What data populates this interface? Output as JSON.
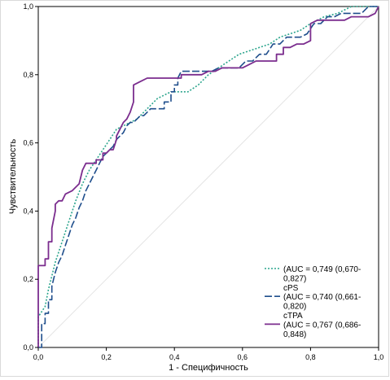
{
  "chart_data": {
    "type": "line",
    "xlabel": "1 - Специфичность",
    "ylabel": "Чувствительность",
    "xlim": [
      0,
      1
    ],
    "ylim": [
      0,
      1
    ],
    "x_ticks": [
      "0,0",
      "0,2",
      "0,4",
      "0,6",
      "0,8",
      "1,0"
    ],
    "y_ticks": [
      "0,0",
      "0,2",
      "0,4",
      "0,6",
      "0,8",
      "1,0"
    ],
    "grid": false,
    "legend_position": "bottom-right",
    "legend_lines": [
      "(AUC = 0,749 (0,670-",
      "0,827)",
      "cPS",
      "(AUC = 0,740 (0,661-",
      "0,820)",
      "cTPA",
      "(AUC = 0,767 (0,686-",
      "0,848)"
    ],
    "series": [
      {
        "color": "#2ca58d",
        "style": "dotted",
        "x": [
          0.0,
          0.0,
          0.02,
          0.03,
          0.05,
          0.07,
          0.09,
          0.11,
          0.13,
          0.15,
          0.17,
          0.19,
          0.21,
          0.23,
          0.25,
          0.27,
          0.29,
          0.31,
          0.33,
          0.35,
          0.37,
          0.39,
          0.41,
          0.44,
          0.47,
          0.5,
          0.53,
          0.56,
          0.59,
          0.62,
          0.65,
          0.68,
          0.71,
          0.74,
          0.77,
          0.8,
          0.84,
          0.88,
          0.92,
          0.96,
          1.0
        ],
        "y": [
          0.0,
          0.09,
          0.12,
          0.17,
          0.25,
          0.31,
          0.37,
          0.43,
          0.48,
          0.52,
          0.55,
          0.58,
          0.61,
          0.64,
          0.65,
          0.66,
          0.67,
          0.69,
          0.71,
          0.73,
          0.74,
          0.75,
          0.75,
          0.75,
          0.77,
          0.8,
          0.82,
          0.84,
          0.86,
          0.87,
          0.88,
          0.89,
          0.91,
          0.92,
          0.93,
          0.95,
          0.97,
          0.98,
          1.0,
          1.0,
          1.0
        ]
      },
      {
        "color": "#1f4e8c",
        "style": "dashed",
        "x": [
          0.0,
          0.01,
          0.01,
          0.02,
          0.02,
          0.03,
          0.03,
          0.04,
          0.04,
          0.05,
          0.06,
          0.07,
          0.08,
          0.09,
          0.1,
          0.11,
          0.12,
          0.13,
          0.14,
          0.15,
          0.16,
          0.17,
          0.18,
          0.19,
          0.2,
          0.21,
          0.22,
          0.23,
          0.24,
          0.25,
          0.26,
          0.27,
          0.28,
          0.29,
          0.3,
          0.31,
          0.32,
          0.33,
          0.35,
          0.36,
          0.37,
          0.37,
          0.39,
          0.39,
          0.4,
          0.4,
          0.41,
          0.41,
          0.42,
          0.43,
          0.44,
          0.45,
          0.47,
          0.49,
          0.51,
          0.53,
          0.55,
          0.57,
          0.59,
          0.61,
          0.63,
          0.65,
          0.67,
          0.69,
          0.71,
          0.73,
          0.75,
          0.77,
          0.79,
          0.81,
          0.83,
          0.85,
          0.87,
          0.89,
          0.91,
          0.93,
          0.95,
          0.97,
          1.0
        ],
        "y": [
          0.0,
          0.0,
          0.07,
          0.07,
          0.1,
          0.1,
          0.14,
          0.14,
          0.18,
          0.22,
          0.25,
          0.27,
          0.3,
          0.33,
          0.36,
          0.38,
          0.41,
          0.43,
          0.46,
          0.48,
          0.5,
          0.52,
          0.54,
          0.56,
          0.57,
          0.58,
          0.59,
          0.61,
          0.62,
          0.63,
          0.65,
          0.66,
          0.66,
          0.67,
          0.68,
          0.68,
          0.69,
          0.7,
          0.7,
          0.7,
          0.7,
          0.72,
          0.72,
          0.75,
          0.75,
          0.77,
          0.77,
          0.79,
          0.81,
          0.81,
          0.81,
          0.81,
          0.81,
          0.81,
          0.81,
          0.82,
          0.82,
          0.82,
          0.82,
          0.84,
          0.84,
          0.86,
          0.86,
          0.89,
          0.89,
          0.91,
          0.91,
          0.91,
          0.92,
          0.95,
          0.95,
          0.97,
          0.97,
          0.98,
          0.98,
          0.98,
          0.98,
          1.0,
          1.0
        ]
      },
      {
        "color": "#7b2d8e",
        "style": "solid",
        "x": [
          0.0,
          0.0,
          0.01,
          0.02,
          0.02,
          0.03,
          0.03,
          0.04,
          0.04,
          0.05,
          0.05,
          0.06,
          0.07,
          0.08,
          0.08,
          0.1,
          0.12,
          0.12,
          0.13,
          0.14,
          0.15,
          0.16,
          0.17,
          0.17,
          0.18,
          0.19,
          0.19,
          0.2,
          0.21,
          0.21,
          0.22,
          0.23,
          0.23,
          0.24,
          0.25,
          0.26,
          0.27,
          0.28,
          0.28,
          0.3,
          0.32,
          0.34,
          0.36,
          0.38,
          0.4,
          0.42,
          0.42,
          0.44,
          0.46,
          0.48,
          0.5,
          0.52,
          0.54,
          0.56,
          0.58,
          0.6,
          0.62,
          0.64,
          0.66,
          0.68,
          0.7,
          0.7,
          0.72,
          0.72,
          0.74,
          0.76,
          0.78,
          0.8,
          0.8,
          0.82,
          0.84,
          0.86,
          0.88,
          0.9,
          0.92,
          0.94,
          0.96,
          0.97,
          0.99,
          0.99,
          1.0
        ],
        "y": [
          0.0,
          0.24,
          0.24,
          0.24,
          0.26,
          0.26,
          0.31,
          0.31,
          0.35,
          0.4,
          0.42,
          0.43,
          0.43,
          0.45,
          0.45,
          0.46,
          0.48,
          0.48,
          0.52,
          0.54,
          0.54,
          0.54,
          0.54,
          0.55,
          0.55,
          0.55,
          0.57,
          0.57,
          0.58,
          0.58,
          0.58,
          0.61,
          0.62,
          0.64,
          0.66,
          0.67,
          0.69,
          0.72,
          0.77,
          0.78,
          0.79,
          0.79,
          0.79,
          0.79,
          0.79,
          0.79,
          0.8,
          0.8,
          0.8,
          0.8,
          0.81,
          0.81,
          0.82,
          0.82,
          0.82,
          0.82,
          0.83,
          0.84,
          0.84,
          0.84,
          0.84,
          0.86,
          0.86,
          0.88,
          0.88,
          0.89,
          0.89,
          0.9,
          0.95,
          0.96,
          0.96,
          0.96,
          0.96,
          0.96,
          0.97,
          0.97,
          0.97,
          0.97,
          0.98,
          0.98,
          1.0
        ]
      }
    ]
  }
}
